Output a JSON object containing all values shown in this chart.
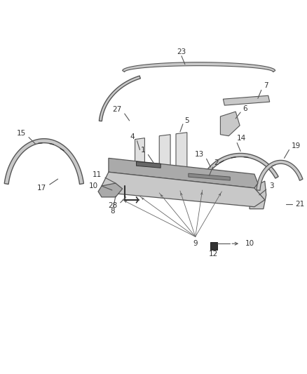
{
  "bg_color": "#ffffff",
  "line_color": "#555555",
  "dark_color": "#333333",
  "light_fill": "#e0e0e0",
  "mid_fill": "#c8c8c8",
  "dark_fill": "#aaaaaa",
  "figsize": [
    4.38,
    5.33
  ],
  "dpi": 100,
  "label_fs": 7.5
}
